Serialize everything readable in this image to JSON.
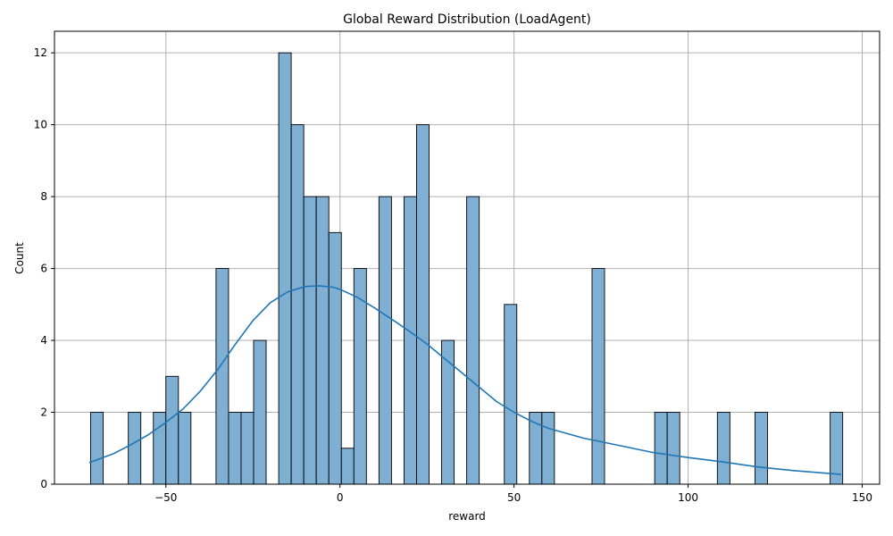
{
  "chart_data": {
    "type": "bar",
    "title": "Global Reward Distribution (LoadAgent)",
    "xlabel": "reward",
    "ylabel": "Count",
    "xlim": [
      -82,
      155
    ],
    "ylim": [
      0,
      12.6
    ],
    "x_ticks": [
      -50,
      0,
      50,
      100,
      150
    ],
    "x_tick_labels": [
      "−50",
      "0",
      "50",
      "100",
      "150"
    ],
    "y_ticks": [
      0,
      2,
      4,
      6,
      8,
      10,
      12
    ],
    "y_tick_labels": [
      "0",
      "2",
      "4",
      "6",
      "8",
      "10",
      "12"
    ],
    "grid": true,
    "bin_width": 3.6,
    "bins": [
      {
        "x0": -71.6,
        "x1": -68.0,
        "count": 2
      },
      {
        "x0": -60.8,
        "x1": -57.2,
        "count": 2
      },
      {
        "x0": -53.6,
        "x1": -50.0,
        "count": 2
      },
      {
        "x0": -50.0,
        "x1": -46.4,
        "count": 3
      },
      {
        "x0": -46.4,
        "x1": -42.8,
        "count": 2
      },
      {
        "x0": -35.6,
        "x1": -32.0,
        "count": 6
      },
      {
        "x0": -32.0,
        "x1": -28.4,
        "count": 2
      },
      {
        "x0": -28.4,
        "x1": -24.8,
        "count": 2
      },
      {
        "x0": -24.8,
        "x1": -21.2,
        "count": 4
      },
      {
        "x0": -17.6,
        "x1": -14.0,
        "count": 12
      },
      {
        "x0": -14.0,
        "x1": -10.4,
        "count": 10
      },
      {
        "x0": -10.4,
        "x1": -6.8,
        "count": 8
      },
      {
        "x0": -6.8,
        "x1": -3.2,
        "count": 8
      },
      {
        "x0": -3.2,
        "x1": 0.4,
        "count": 7
      },
      {
        "x0": 0.4,
        "x1": 4.0,
        "count": 1
      },
      {
        "x0": 4.0,
        "x1": 7.6,
        "count": 6
      },
      {
        "x0": 11.2,
        "x1": 14.8,
        "count": 8
      },
      {
        "x0": 18.4,
        "x1": 22.0,
        "count": 8
      },
      {
        "x0": 22.0,
        "x1": 25.6,
        "count": 10
      },
      {
        "x0": 29.2,
        "x1": 32.8,
        "count": 4
      },
      {
        "x0": 36.4,
        "x1": 40.0,
        "count": 8
      },
      {
        "x0": 47.2,
        "x1": 50.8,
        "count": 5
      },
      {
        "x0": 54.4,
        "x1": 58.0,
        "count": 2
      },
      {
        "x0": 58.0,
        "x1": 61.6,
        "count": 2
      },
      {
        "x0": 72.4,
        "x1": 76.0,
        "count": 6
      },
      {
        "x0": 90.4,
        "x1": 94.0,
        "count": 2
      },
      {
        "x0": 94.0,
        "x1": 97.6,
        "count": 2
      },
      {
        "x0": 108.4,
        "x1": 112.0,
        "count": 2
      },
      {
        "x0": 119.2,
        "x1": 122.8,
        "count": 2
      },
      {
        "x0": 140.8,
        "x1": 144.4,
        "count": 2
      }
    ],
    "kde": {
      "x": [
        -72,
        -65,
        -60,
        -55,
        -50,
        -45,
        -40,
        -35,
        -30,
        -25,
        -20,
        -15,
        -10,
        -6,
        -2,
        0,
        5,
        10,
        15,
        20,
        25,
        30,
        35,
        40,
        45,
        50,
        55,
        60,
        70,
        80,
        90,
        100,
        110,
        120,
        130,
        144
      ],
      "y": [
        0.6,
        0.85,
        1.1,
        1.38,
        1.72,
        2.1,
        2.6,
        3.2,
        3.9,
        4.55,
        5.05,
        5.35,
        5.5,
        5.52,
        5.48,
        5.42,
        5.2,
        4.9,
        4.58,
        4.25,
        3.9,
        3.5,
        3.1,
        2.7,
        2.3,
        2.0,
        1.75,
        1.55,
        1.28,
        1.08,
        0.88,
        0.74,
        0.62,
        0.48,
        0.38,
        0.27
      ]
    },
    "colors": {
      "bar_fill": "#80afd4",
      "bar_edge": "#000000",
      "kde_line": "#1f77b4",
      "grid": "#b0b0b0"
    }
  }
}
